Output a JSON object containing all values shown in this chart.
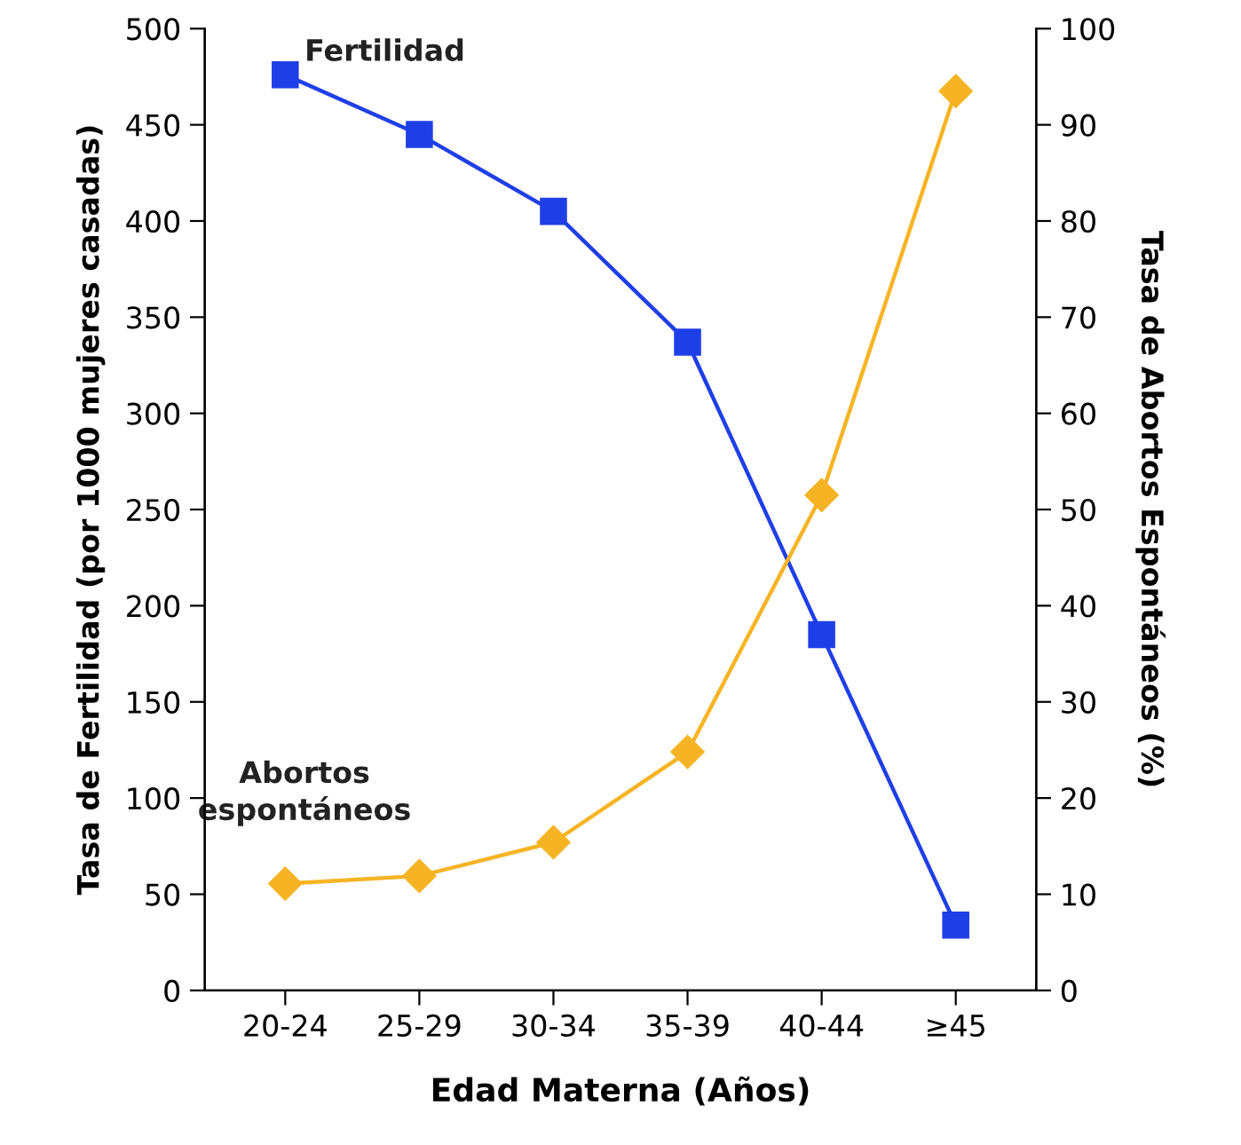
{
  "chart_data": {
    "type": "line",
    "xlabel": "Edad Materna (Años)",
    "ylabel": "Tasa de Fertilidad (por 1000 mujeres casadas)",
    "y2label": "Tasa de Abortos Espontáneos (%)",
    "categories": [
      "20-24",
      "25-29",
      "30-34",
      "35-39",
      "40-44",
      "≥45"
    ],
    "series": [
      {
        "name": "Fertilidad",
        "color": "#1f3fe6",
        "marker": "square",
        "values": [
          476,
          445,
          405,
          337,
          185,
          34
        ]
      },
      {
        "name": "Abortos espontáneos",
        "color": "#f6b425",
        "marker": "diamond",
        "axis": "y2",
        "values": [
          11.1,
          11.9,
          15.4,
          24.8,
          51.5,
          93.5
        ]
      }
    ],
    "ylim": [
      0,
      500
    ],
    "yticks": [
      0,
      50,
      100,
      150,
      200,
      250,
      300,
      350,
      400,
      450,
      500
    ],
    "y2lim": [
      0,
      100
    ],
    "y2ticks": [
      0,
      10,
      20,
      30,
      40,
      50,
      60,
      70,
      80,
      90,
      100
    ],
    "grid": false,
    "legend": false
  }
}
